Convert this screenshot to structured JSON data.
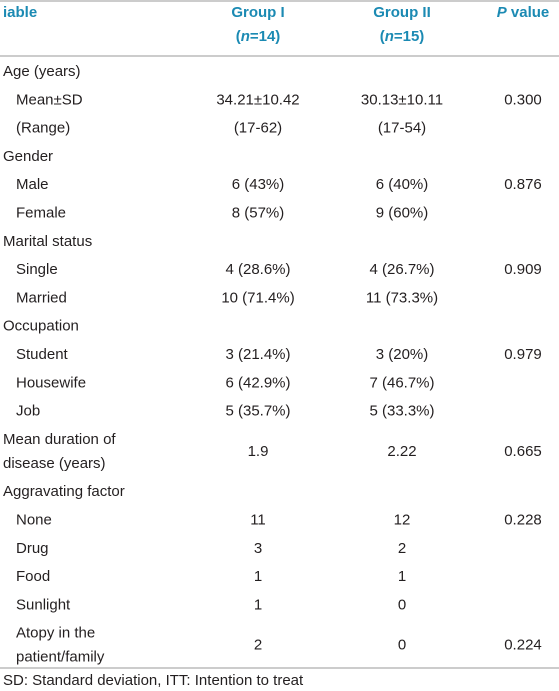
{
  "header": {
    "columns": [
      {
        "lines": [
          [
            {
              "text": "iable"
            }
          ]
        ]
      },
      {
        "lines": [
          [
            {
              "text": "Group I"
            }
          ],
          [
            {
              "text": "("
            },
            {
              "text": "n",
              "italic": true
            },
            {
              "text": "=14)"
            }
          ]
        ]
      },
      {
        "lines": [
          [
            {
              "text": "Group II"
            }
          ],
          [
            {
              "text": "("
            },
            {
              "text": "n",
              "italic": true
            },
            {
              "text": "=15)"
            }
          ]
        ]
      },
      {
        "lines": [
          [
            {
              "text": "P",
              "italic": true
            },
            {
              "text": " value"
            }
          ]
        ]
      }
    ]
  },
  "sections": [
    {
      "label": [
        "Age (years)"
      ],
      "rows": [
        {
          "label": [
            "Mean±SD"
          ],
          "values": [
            "34.21±10.42",
            "30.13±10.11",
            "0.300"
          ]
        },
        {
          "label": [
            "(Range)"
          ],
          "values": [
            "(17-62)",
            "(17-54)",
            null
          ]
        }
      ]
    },
    {
      "label": [
        "Gender"
      ],
      "rows": [
        {
          "label": [
            "Male"
          ],
          "values": [
            "6 (43%)",
            "6 (40%)",
            "0.876"
          ]
        },
        {
          "label": [
            "Female"
          ],
          "values": [
            "8 (57%)",
            "9 (60%)",
            null
          ]
        }
      ]
    },
    {
      "label": [
        "Marital status"
      ],
      "rows": [
        {
          "label": [
            "Single"
          ],
          "values": [
            "4 (28.6%)",
            "4 (26.7%)",
            "0.909"
          ]
        },
        {
          "label": [
            "Married"
          ],
          "values": [
            "10 (71.4%)",
            "11 (73.3%)",
            null
          ]
        }
      ]
    },
    {
      "label": [
        "Occupation"
      ],
      "rows": [
        {
          "label": [
            "Student"
          ],
          "values": [
            "3 (21.4%)",
            "3 (20%)",
            "0.979"
          ]
        },
        {
          "label": [
            "Housewife"
          ],
          "values": [
            "6 (42.9%)",
            "7 (46.7%)",
            null
          ]
        },
        {
          "label": [
            "Job"
          ],
          "values": [
            "5 (35.7%)",
            "5 (33.3%)",
            null
          ]
        }
      ]
    },
    {
      "label": [
        "Mean duration of",
        "disease (years)"
      ],
      "values": [
        "1.9",
        "2.22",
        "0.665"
      ]
    },
    {
      "label": [
        "Aggravating factor"
      ],
      "rows": [
        {
          "label": [
            "None"
          ],
          "values": [
            "11",
            "12",
            "0.228"
          ]
        },
        {
          "label": [
            "Drug"
          ],
          "values": [
            "3",
            "2",
            null
          ]
        },
        {
          "label": [
            "Food"
          ],
          "values": [
            "1",
            "1",
            null
          ]
        },
        {
          "label": [
            "Sunlight"
          ],
          "values": [
            "1",
            "0",
            null
          ]
        },
        {
          "label": [
            "Atopy in the",
            "patient/family"
          ],
          "values": [
            "2",
            "0",
            "0.224"
          ]
        }
      ]
    }
  ],
  "footnote": "SD: Standard deviation, ITT: Intention to treat"
}
